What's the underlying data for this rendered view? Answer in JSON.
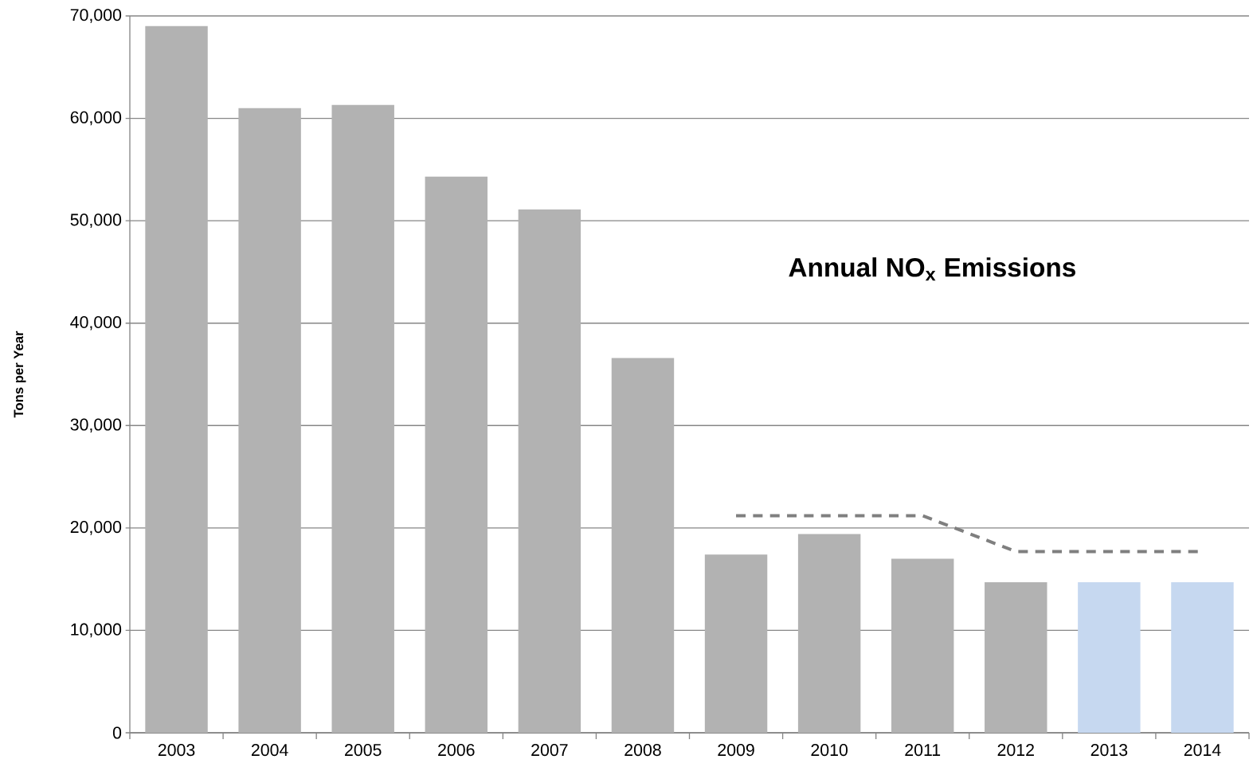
{
  "chart_data": {
    "type": "bar",
    "title": "Annual NO$_{x}$ Emissions",
    "ylabel": "Tons per Year",
    "categories": [
      "2003",
      "2004",
      "2005",
      "2006",
      "2007",
      "2008",
      "2009",
      "2010",
      "2011",
      "2012",
      "2013",
      "2014"
    ],
    "series": [
      {
        "values": [
          69000,
          61000,
          61300,
          54300,
          51100,
          36600,
          17400,
          19400,
          17000,
          14700,
          14700,
          14700
        ],
        "colors": [
          "#b2b2b2",
          "#b2b2b2",
          "#b2b2b2",
          "#b2b2b2",
          "#b2b2b2",
          "#b2b2b2",
          "#b2b2b2",
          "#b2b2b2",
          "#b2b2b2",
          "#b2b2b2",
          "#c6d8f0",
          "#c6d8f0"
        ]
      },
      {
        "type": "line",
        "values": [
          null,
          null,
          null,
          null,
          null,
          null,
          21200,
          21200,
          21200,
          17700,
          17700,
          17700
        ],
        "color": "#7f7f7f",
        "line_style": "dashed"
      }
    ],
    "ylim": [
      0,
      70000
    ],
    "yticks": [
      {
        "value": 0,
        "label": "0"
      },
      {
        "value": 10000,
        "label": "10,000"
      },
      {
        "value": 20000,
        "label": "20,000"
      },
      {
        "value": 30000,
        "label": "30,000"
      },
      {
        "value": 40000,
        "label": "40,000"
      },
      {
        "value": 50000,
        "label": "50,000"
      },
      {
        "value": 60000,
        "label": "60,000"
      },
      {
        "value": 70000,
        "label": "70,000"
      }
    ],
    "grid": "y"
  }
}
